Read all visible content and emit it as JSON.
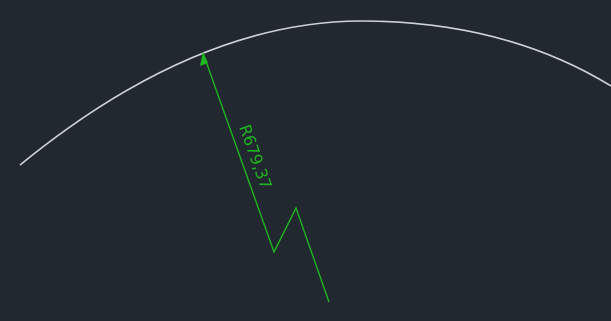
{
  "drawing": {
    "background_color": "#212830",
    "arc_color": "#cfd2d6",
    "dimension_color": "#1fb51f",
    "dimension": {
      "type": "jogged-radius",
      "label": "R679,37",
      "radius_value": 679.37
    }
  }
}
